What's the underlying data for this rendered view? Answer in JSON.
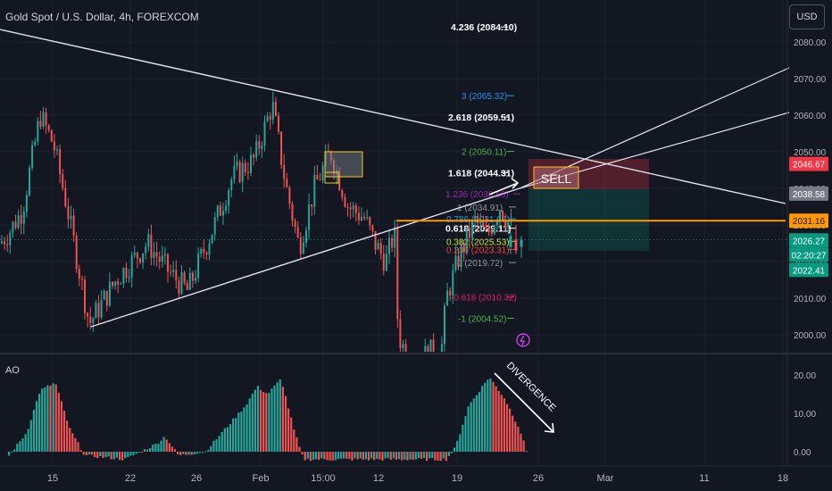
{
  "header": {
    "symbol_title": "Gold Spot / U.S. Dollar, 4h, FOREXCOM"
  },
  "currency_button": {
    "label": "USD"
  },
  "indicator": {
    "name": "AO"
  },
  "chart_data": [
    {
      "type": "candlestick",
      "title": "Gold Spot / U.S. Dollar, 4h, FOREXCOM",
      "ylim": [
        1995,
        2089
      ],
      "y_ticks": [
        "2000.00",
        "2010.00",
        "2020.00",
        "2030.00",
        "2040.00",
        "2050.00",
        "2060.00",
        "2070.00",
        "2080.00"
      ],
      "x_ticks": [
        "15",
        "22",
        "26",
        "Feb",
        "15:00",
        "12",
        "19",
        "26",
        "Mar",
        "11",
        "18"
      ],
      "series": [
        {
          "name": "XAUUSD",
          "summary_high": 2065,
          "summary_low": 2002,
          "last": 2026.27
        }
      ],
      "fib_levels": [
        {
          "label": "4.236 (2084.10)",
          "value": 2084.1,
          "color": "#ffffff"
        },
        {
          "label": "3 (2065.32)",
          "value": 2065.32,
          "color": "#2196f3"
        },
        {
          "label": "2.618 (2059.51)",
          "value": 2059.51,
          "color": "#ffffff"
        },
        {
          "label": "2 (2050.11)",
          "value": 2050.11,
          "color": "#4caf50"
        },
        {
          "label": "1.618 (2044.31)",
          "value": 2044.31,
          "color": "#ffffff"
        },
        {
          "label": "1.236 (2038.50)",
          "value": 2038.5,
          "color": "#9c27b0"
        },
        {
          "label": "1 (2034.91)",
          "value": 2034.91,
          "color": "#9598a1"
        },
        {
          "label": "0.786 (2031.67)",
          "value": 2031.67,
          "color": "#2196f3"
        },
        {
          "label": "0.618 (2029.11)",
          "value": 2029.11,
          "color": "#ffffff"
        },
        {
          "label": "0.382 (2025.53)",
          "value": 2025.53,
          "color": "#cddc39"
        },
        {
          "label": "0.236 (2023.31)",
          "value": 2023.31,
          "color": "#f44336"
        },
        {
          "label": "0 (2019.72)",
          "value": 2019.72,
          "color": "#9598a1"
        },
        {
          "label": "-0.618 (2010.32)",
          "value": 2010.32,
          "color": "#e91e63"
        },
        {
          "label": "-1 (2004.52)",
          "value": 2004.52,
          "color": "#4caf50"
        }
      ],
      "price_tags": [
        {
          "label": "2046.67",
          "value": 2046.67,
          "bg": "#f23645",
          "fg": "#ffffff"
        },
        {
          "label": "2038.58",
          "value": 2038.58,
          "bg": "#787b86",
          "fg": "#ffffff"
        },
        {
          "label": "2031.16",
          "value": 2031.16,
          "bg": "#ff9800",
          "fg": "#131722"
        },
        {
          "label": "2026.27",
          "value": 2026.27,
          "bg": "#089981",
          "fg": "#ffffff"
        },
        {
          "label": "02:20:27",
          "value": 2023.9,
          "bg": "#089981",
          "fg": "#ffffff"
        },
        {
          "label": "2022.41",
          "value": 2022.41,
          "bg": "#089981",
          "fg": "#ffffff"
        }
      ],
      "horizontal_line": {
        "value": 2031.16,
        "color": "#ff9800"
      },
      "annotations": {
        "sell": "SELL"
      }
    },
    {
      "type": "bar",
      "title": "AO",
      "ylim": [
        -3,
        23
      ],
      "y_ticks": [
        "0.00",
        "10.00",
        "20.00"
      ],
      "peak": 19.5,
      "last": -1.0,
      "annotation": "DIVERGENCE"
    }
  ],
  "colors": {
    "up": "#26a69a",
    "down": "#ef5350",
    "bg": "#131722",
    "grid": "#1e222d",
    "axis_text": "#b2b5be"
  }
}
